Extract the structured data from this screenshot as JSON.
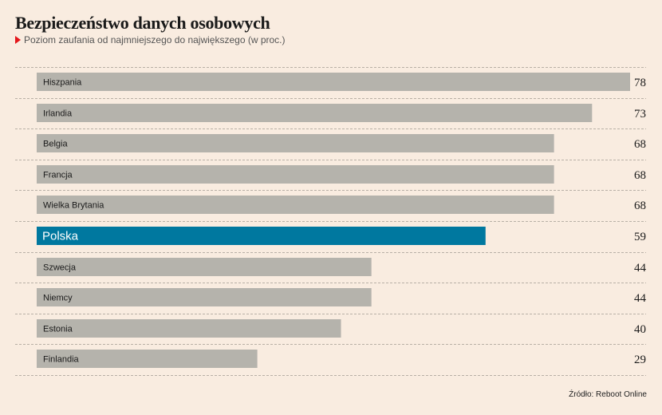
{
  "header": {
    "title": "Bezpieczeństwo danych osobowych",
    "subtitle": "Poziom zaufania od najmniejszego do największego (w proc.)"
  },
  "footer": {
    "source": "Źródło: Reboot Online"
  },
  "colors": {
    "background": "#f9ece0",
    "bar": "#b5b3ac",
    "highlight": "#00789f",
    "gridline": "#b8b0a6",
    "marker": "#e4161b"
  },
  "chart_data": {
    "type": "bar",
    "orientation": "horizontal",
    "title": "Bezpieczeństwo danych osobowych",
    "subtitle": "Poziom zaufania od najmniejszego do największego (w proc.)",
    "categories": [
      "Hiszpania",
      "Irlandia",
      "Belgia",
      "Francja",
      "Wielka Brytania",
      "Polska",
      "Szwecja",
      "Niemcy",
      "Estonia",
      "Finlandia"
    ],
    "values": [
      78,
      73,
      68,
      68,
      68,
      59,
      44,
      44,
      40,
      29
    ],
    "highlighted_category": "Polska",
    "xlim": [
      0,
      78
    ],
    "grid": true,
    "source": "Źródło: Reboot Online"
  }
}
